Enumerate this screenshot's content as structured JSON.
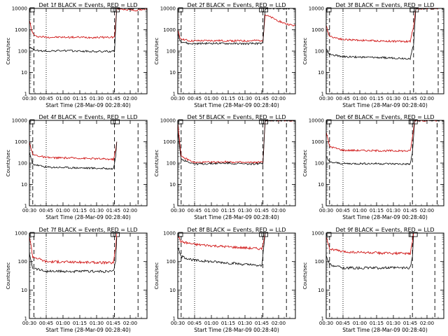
{
  "figure": {
    "panel_title_template": "Det {det}f BLACK = Events, RED = LLD",
    "xlabel": "Start Time (28-Mar-09 00:28:40)",
    "ylabel": "Counts/sec",
    "colors": {
      "events": "#000000",
      "lld": "#cc0000",
      "axes": "#000000",
      "background": "#ffffff"
    }
  },
  "chart_data": [
    {
      "type": "line",
      "det": 1,
      "title": "Det 1f BLACK = Events, RED = LLD",
      "xlabel": "Start Time (28-Mar-09 00:28:40)",
      "ylabel": "Counts/sec",
      "yscale": "log",
      "ylim": [
        1,
        10000
      ],
      "xlim": [
        "00:30",
        "02:15"
      ],
      "x_ticks": [
        "00:30",
        "00:45",
        "01:00",
        "01:15",
        "01:30",
        "01:45",
        "02:00"
      ],
      "y_ticks": [
        "1",
        "10",
        "100",
        "1000",
        "10000"
      ],
      "markers": {
        "dashed": [
          "00:34",
          "01:46",
          "02:07"
        ],
        "dotted": [
          "00:45"
        ]
      },
      "series": [
        {
          "name": "Events",
          "color": "#000000",
          "points": [
            [
              "00:30",
              150
            ],
            [
              "00:33",
              120
            ],
            [
              "00:40",
              100
            ],
            [
              "01:00",
              105
            ],
            [
              "01:30",
              95
            ],
            [
              "01:46",
              98
            ],
            [
              "01:48",
              10000
            ],
            [
              "02:15",
              10000
            ]
          ]
        },
        {
          "name": "LLD",
          "color": "#cc0000",
          "points": [
            [
              "00:30",
              3000
            ],
            [
              "00:32",
              900
            ],
            [
              "00:35",
              500
            ],
            [
              "00:45",
              450
            ],
            [
              "01:30",
              440
            ],
            [
              "01:46",
              450
            ],
            [
              "01:48",
              10000
            ],
            [
              "02:05",
              8000
            ],
            [
              "02:15",
              10000
            ]
          ]
        }
      ]
    },
    {
      "type": "line",
      "det": 2,
      "title": "Det 2f BLACK = Events, RED = LLD",
      "xlabel": "Start Time (28-Mar-09 00:28:40)",
      "ylabel": "Counts/sec",
      "yscale": "log",
      "ylim": [
        1,
        10000
      ],
      "xlim": [
        "00:30",
        "02:15"
      ],
      "x_ticks": [
        "00:30",
        "00:45",
        "01:00",
        "01:15",
        "01:30",
        "01:45",
        "02:00"
      ],
      "y_ticks": [
        "1",
        "10",
        "100",
        "1000",
        "10000"
      ],
      "markers": {
        "dashed": [
          "00:33",
          "01:46",
          "02:07"
        ],
        "dotted": [
          "00:45"
        ]
      },
      "series": [
        {
          "name": "Events",
          "color": "#000000",
          "points": [
            [
              "00:30",
              700
            ],
            [
              "00:32",
              300
            ],
            [
              "00:40",
              220
            ],
            [
              "01:00",
              230
            ],
            [
              "01:30",
              220
            ],
            [
              "01:46",
              230
            ],
            [
              "01:48",
              10000
            ],
            [
              "02:15",
              10000
            ]
          ]
        },
        {
          "name": "LLD",
          "color": "#cc0000",
          "points": [
            [
              "00:30",
              900
            ],
            [
              "00:32",
              400
            ],
            [
              "00:40",
              300
            ],
            [
              "01:00",
              310
            ],
            [
              "01:30",
              300
            ],
            [
              "01:46",
              320
            ],
            [
              "01:48",
              5000
            ],
            [
              "02:05",
              2000
            ],
            [
              "02:15",
              1500
            ]
          ]
        }
      ]
    },
    {
      "type": "line",
      "det": 3,
      "title": "Det 3f BLACK = Events, RED = LLD",
      "xlabel": "Start Time (28-Mar-09 00:28:40)",
      "ylabel": "Counts/sec",
      "yscale": "log",
      "ylim": [
        1,
        10000
      ],
      "xlim": [
        "00:30",
        "02:15"
      ],
      "x_ticks": [
        "00:30",
        "00:45",
        "01:00",
        "01:15",
        "01:30",
        "01:45",
        "02:00"
      ],
      "y_ticks": [
        "1",
        "10",
        "100",
        "1000",
        "10000"
      ],
      "markers": {
        "dashed": [
          "00:33",
          "01:48",
          "02:10"
        ],
        "dotted": [
          "00:45"
        ]
      },
      "series": [
        {
          "name": "Events",
          "color": "#000000",
          "points": [
            [
              "00:30",
              120
            ],
            [
              "00:33",
              70
            ],
            [
              "00:45",
              55
            ],
            [
              "01:15",
              50
            ],
            [
              "01:45",
              45
            ],
            [
              "01:48",
              200
            ],
            [
              "01:50",
              10000
            ],
            [
              "02:15",
              10000
            ]
          ]
        },
        {
          "name": "LLD",
          "color": "#cc0000",
          "points": [
            [
              "00:30",
              1500
            ],
            [
              "00:33",
              500
            ],
            [
              "00:45",
              350
            ],
            [
              "01:15",
              300
            ],
            [
              "01:45",
              280
            ],
            [
              "01:48",
              1500
            ],
            [
              "01:50",
              10000
            ],
            [
              "02:15",
              10000
            ]
          ]
        }
      ]
    },
    {
      "type": "line",
      "det": 4,
      "title": "Det 4f BLACK = Events, RED = LLD",
      "xlabel": "Start Time (28-Mar-09 00:28:40)",
      "ylabel": "Counts/sec",
      "yscale": "log",
      "ylim": [
        1,
        10000
      ],
      "xlim": [
        "00:30",
        "02:15"
      ],
      "x_ticks": [
        "00:30",
        "00:45",
        "01:00",
        "01:15",
        "01:30",
        "01:45",
        "02:00"
      ],
      "y_ticks": [
        "1",
        "10",
        "100",
        "1000",
        "10000"
      ],
      "markers": {
        "dashed": [
          "00:33",
          "01:46",
          "02:07"
        ],
        "dotted": [
          "00:45"
        ]
      },
      "series": [
        {
          "name": "Events",
          "color": "#000000",
          "points": [
            [
              "00:30",
              300
            ],
            [
              "00:33",
              90
            ],
            [
              "00:45",
              65
            ],
            [
              "01:15",
              60
            ],
            [
              "01:45",
              55
            ],
            [
              "01:47",
              200
            ],
            [
              "01:48",
              1000
            ]
          ]
        },
        {
          "name": "LLD",
          "color": "#cc0000",
          "points": [
            [
              "00:30",
              1000
            ],
            [
              "00:33",
              250
            ],
            [
              "00:45",
              180
            ],
            [
              "01:15",
              170
            ],
            [
              "01:45",
              150
            ],
            [
              "01:47",
              400
            ],
            [
              "01:48",
              1000
            ]
          ]
        }
      ]
    },
    {
      "type": "line",
      "det": 5,
      "title": "Det 5f BLACK = Events, RED = LLD",
      "xlabel": "Start Time (28-Mar-09 00:28:40)",
      "ylabel": "Counts/sec",
      "yscale": "log",
      "ylim": [
        1,
        10000
      ],
      "xlim": [
        "00:30",
        "02:15"
      ],
      "x_ticks": [
        "00:30",
        "00:45",
        "01:00",
        "01:15",
        "01:30",
        "01:45",
        "02:00"
      ],
      "y_ticks": [
        "1",
        "10",
        "100",
        "1000",
        "10000"
      ],
      "markers": {
        "dashed": [
          "00:33",
          "01:46",
          "02:07"
        ],
        "dotted": [
          "00:45"
        ]
      },
      "series": [
        {
          "name": "Events",
          "color": "#000000",
          "points": [
            [
              "00:30",
              3000
            ],
            [
              "00:33",
              150
            ],
            [
              "00:45",
              90
            ],
            [
              "01:15",
              100
            ],
            [
              "01:30",
              90
            ],
            [
              "01:46",
              95
            ],
            [
              "01:48",
              10000
            ],
            [
              "02:15",
              10000
            ]
          ]
        },
        {
          "name": "LLD",
          "color": "#cc0000",
          "points": [
            [
              "00:30",
              8000
            ],
            [
              "00:33",
              200
            ],
            [
              "00:45",
              105
            ],
            [
              "01:15",
              115
            ],
            [
              "01:30",
              105
            ],
            [
              "01:46",
              110
            ],
            [
              "01:48",
              10000
            ],
            [
              "02:15",
              10000
            ]
          ]
        }
      ]
    },
    {
      "type": "line",
      "det": 6,
      "title": "Det 6f BLACK = Events, RED = LLD",
      "xlabel": "Start Time (28-Mar-09 00:28:40)",
      "ylabel": "Counts/sec",
      "yscale": "log",
      "ylim": [
        1,
        10000
      ],
      "xlim": [
        "00:30",
        "02:15"
      ],
      "x_ticks": [
        "00:30",
        "00:45",
        "01:00",
        "01:15",
        "01:30",
        "01:45",
        "02:00"
      ],
      "y_ticks": [
        "1",
        "10",
        "100",
        "1000",
        "10000"
      ],
      "markers": {
        "dashed": [
          "00:33",
          "01:47",
          "02:09"
        ],
        "dotted": [
          "00:45"
        ]
      },
      "series": [
        {
          "name": "Events",
          "color": "#000000",
          "points": [
            [
              "00:30",
              200
            ],
            [
              "00:33",
              110
            ],
            [
              "00:45",
              95
            ],
            [
              "01:15",
              95
            ],
            [
              "01:45",
              90
            ],
            [
              "01:47",
              300
            ],
            [
              "01:49",
              10000
            ],
            [
              "02:15",
              10000
            ]
          ]
        },
        {
          "name": "LLD",
          "color": "#cc0000",
          "points": [
            [
              "00:30",
              3000
            ],
            [
              "00:33",
              600
            ],
            [
              "00:45",
              400
            ],
            [
              "01:15",
              380
            ],
            [
              "01:45",
              370
            ],
            [
              "01:47",
              1500
            ],
            [
              "01:49",
              10000
            ],
            [
              "02:15",
              10000
            ]
          ]
        }
      ]
    },
    {
      "type": "line",
      "det": 7,
      "title": "Det 7f BLACK = Events, RED = LLD",
      "xlabel": "Start Time (28-Mar-09 00:28:40)",
      "ylabel": "Counts/sec",
      "yscale": "log",
      "ylim": [
        1,
        1000
      ],
      "xlim": [
        "00:30",
        "02:15"
      ],
      "x_ticks": [
        "00:30",
        "00:45",
        "01:00",
        "01:15",
        "01:30",
        "01:45",
        "02:00"
      ],
      "y_ticks": [
        "1",
        "10",
        "100",
        "1000"
      ],
      "markers": {
        "dashed": [
          "00:34",
          "01:46",
          "02:07"
        ],
        "dotted": [
          "00:45"
        ]
      },
      "series": [
        {
          "name": "Events",
          "color": "#000000",
          "points": [
            [
              "00:30",
              200
            ],
            [
              "00:33",
              60
            ],
            [
              "00:45",
              45
            ],
            [
              "01:15",
              45
            ],
            [
              "01:45",
              45
            ],
            [
              "01:47",
              100
            ],
            [
              "01:48",
              700
            ]
          ]
        },
        {
          "name": "LLD",
          "color": "#cc0000",
          "points": [
            [
              "00:30",
              800
            ],
            [
              "00:33",
              150
            ],
            [
              "00:45",
              100
            ],
            [
              "01:15",
              95
            ],
            [
              "01:45",
              90
            ],
            [
              "01:47",
              300
            ],
            [
              "01:48",
              1000
            ]
          ]
        }
      ]
    },
    {
      "type": "line",
      "det": 8,
      "title": "Det 8f BLACK = Events, RED = LLD",
      "xlabel": "Start Time (28-Mar-09 00:28:40)",
      "ylabel": "Counts/sec",
      "yscale": "log",
      "ylim": [
        1,
        1000
      ],
      "xlim": [
        "00:30",
        "02:15"
      ],
      "x_ticks": [
        "00:30",
        "00:45",
        "01:00",
        "01:15",
        "01:30",
        "01:45",
        "02:00"
      ],
      "y_ticks": [
        "1",
        "10",
        "100",
        "1000"
      ],
      "markers": {
        "dashed": [
          "00:33",
          "01:46",
          "02:07"
        ],
        "dotted": [
          "00:45"
        ]
      },
      "series": [
        {
          "name": "Events",
          "color": "#000000",
          "points": [
            [
              "00:30",
              300
            ],
            [
              "00:33",
              150
            ],
            [
              "00:45",
              110
            ],
            [
              "01:15",
              90
            ],
            [
              "01:45",
              70
            ],
            [
              "01:47",
              400
            ],
            [
              "01:48",
              1000
            ]
          ]
        },
        {
          "name": "LLD",
          "color": "#cc0000",
          "points": [
            [
              "00:30",
              800
            ],
            [
              "00:33",
              500
            ],
            [
              "00:45",
              400
            ],
            [
              "01:15",
              330
            ],
            [
              "01:45",
              280
            ],
            [
              "01:47",
              600
            ],
            [
              "01:48",
              1000
            ]
          ]
        }
      ]
    },
    {
      "type": "line",
      "det": 9,
      "title": "Det 9f BLACK = Events, RED = LLD",
      "xlabel": "Start Time (28-Mar-09 00:28:40)",
      "ylabel": "Counts/sec",
      "yscale": "log",
      "ylim": [
        1,
        1000
      ],
      "xlim": [
        "00:30",
        "02:15"
      ],
      "x_ticks": [
        "00:30",
        "00:45",
        "01:00",
        "01:15",
        "01:30",
        "01:45",
        "02:00"
      ],
      "y_ticks": [
        "1",
        "10",
        "100",
        "1000"
      ],
      "markers": {
        "dashed": [
          "00:33",
          "01:47",
          "02:07"
        ],
        "dotted": [
          "00:45"
        ]
      },
      "series": [
        {
          "name": "Events",
          "color": "#000000",
          "points": [
            [
              "00:30",
              150
            ],
            [
              "00:33",
              80
            ],
            [
              "00:45",
              60
            ],
            [
              "01:15",
              60
            ],
            [
              "01:45",
              60
            ],
            [
              "01:47",
              150
            ],
            [
              "01:48",
              800
            ]
          ]
        },
        {
          "name": "LLD",
          "color": "#cc0000",
          "points": [
            [
              "00:30",
              800
            ],
            [
              "00:33",
              280
            ],
            [
              "00:45",
              220
            ],
            [
              "01:15",
              200
            ],
            [
              "01:45",
              190
            ],
            [
              "01:47",
              500
            ],
            [
              "01:48",
              1000
            ]
          ]
        }
      ]
    }
  ]
}
